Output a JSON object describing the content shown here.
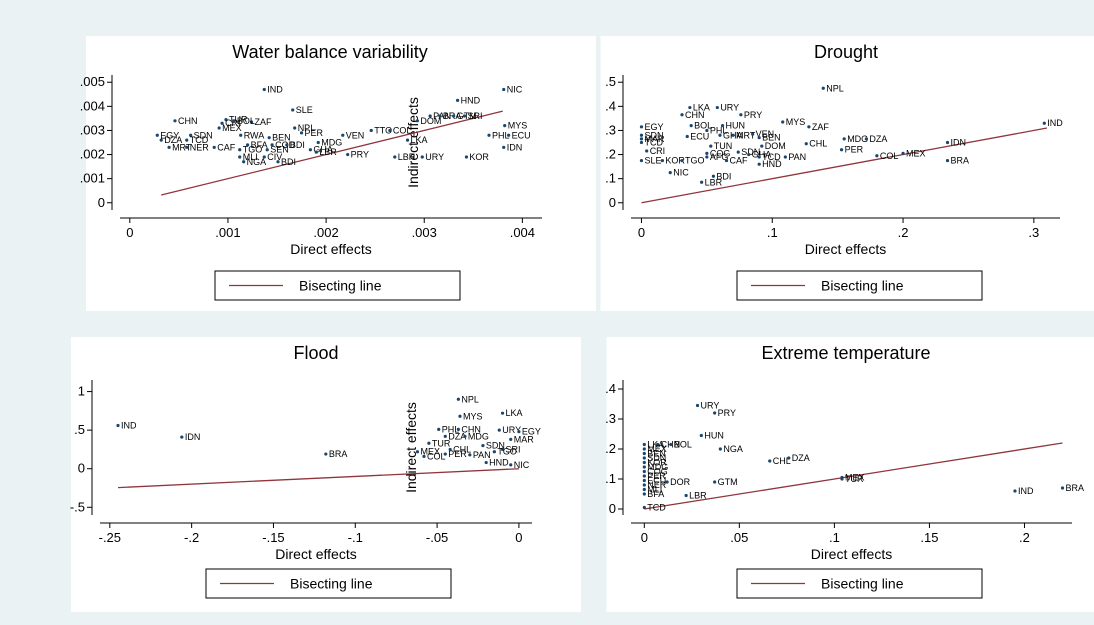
{
  "colors": {
    "background": "#eaf2f3",
    "panel": "#ffffff",
    "marker": "#1a476f",
    "line": "#90353b"
  },
  "chart_data": [
    {
      "type": "scatter",
      "title": "Water balance variability",
      "xlabel": "Direct effects",
      "ylabel": "Indirect effects",
      "xlim": [
        -0.0001,
        0.0042
      ],
      "ylim": [
        -0.0003,
        0.0053
      ],
      "xticks": [
        "0",
        ".001",
        ".002",
        ".003",
        ".004"
      ],
      "xtick_values": [
        0,
        0.001,
        0.002,
        0.003,
        0.004
      ],
      "yticks": [
        "0",
        ".001",
        ".002",
        ".003",
        ".004",
        ".005"
      ],
      "ytick_values": [
        0,
        0.001,
        0.002,
        0.003,
        0.004,
        0.005
      ],
      "legend": [
        "Bisecting line"
      ],
      "line": {
        "x": [
          0.00032,
          0.0038
        ],
        "y": [
          0.00032,
          0.0038
        ]
      },
      "points": [
        {
          "x": 0.00137,
          "y": 0.0047,
          "label": "IND"
        },
        {
          "x": 0.00381,
          "y": 0.0047,
          "label": "NIC"
        },
        {
          "x": 0.00166,
          "y": 0.00385,
          "label": "SLE"
        },
        {
          "x": 0.00334,
          "y": 0.00425,
          "label": "HND"
        },
        {
          "x": 0.00046,
          "y": 0.0034,
          "label": "CHN"
        },
        {
          "x": 0.00098,
          "y": 0.00345,
          "label": "TUR"
        },
        {
          "x": 0.00094,
          "y": 0.0033,
          "label": "CRI"
        },
        {
          "x": 0.00124,
          "y": 0.00335,
          "label": "ZAF"
        },
        {
          "x": 0.00091,
          "y": 0.0031,
          "label": "MEX"
        },
        {
          "x": 0.00106,
          "y": 0.0034,
          "label": "BOL"
        },
        {
          "x": 0.00028,
          "y": 0.0028,
          "label": "EGY"
        },
        {
          "x": 0.00062,
          "y": 0.0028,
          "label": "SDN"
        },
        {
          "x": 0.00032,
          "y": 0.0026,
          "label": "DZA"
        },
        {
          "x": 0.00058,
          "y": 0.0026,
          "label": "TCD"
        },
        {
          "x": 0.0004,
          "y": 0.0023,
          "label": "MRT"
        },
        {
          "x": 0.00058,
          "y": 0.0023,
          "label": "NER"
        },
        {
          "x": 0.00086,
          "y": 0.0023,
          "label": "CAF"
        },
        {
          "x": 0.00113,
          "y": 0.0028,
          "label": "RWA"
        },
        {
          "x": 0.00142,
          "y": 0.0027,
          "label": "BEN"
        },
        {
          "x": 0.00168,
          "y": 0.0031,
          "label": "NPL"
        },
        {
          "x": 0.00175,
          "y": 0.0029,
          "label": "PER"
        },
        {
          "x": 0.0012,
          "y": 0.0024,
          "label": "BFA"
        },
        {
          "x": 0.00145,
          "y": 0.0024,
          "label": "COD"
        },
        {
          "x": 0.0016,
          "y": 0.0024,
          "label": "BDI"
        },
        {
          "x": 0.00112,
          "y": 0.0022,
          "label": "TGO"
        },
        {
          "x": 0.0014,
          "y": 0.0022,
          "label": "SEN"
        },
        {
          "x": 0.00112,
          "y": 0.0019,
          "label": "MLI"
        },
        {
          "x": 0.00116,
          "y": 0.0017,
          "label": "NGA"
        },
        {
          "x": 0.00137,
          "y": 0.0019,
          "label": "CIV"
        },
        {
          "x": 0.00151,
          "y": 0.0017,
          "label": "BDI"
        },
        {
          "x": 0.00184,
          "y": 0.0022,
          "label": "GHA"
        },
        {
          "x": 0.00192,
          "y": 0.0025,
          "label": "MDG"
        },
        {
          "x": 0.0019,
          "y": 0.0021,
          "label": "LBR"
        },
        {
          "x": 0.00217,
          "y": 0.0028,
          "label": "VEN"
        },
        {
          "x": 0.00246,
          "y": 0.003,
          "label": "TTO"
        },
        {
          "x": 0.00265,
          "y": 0.003,
          "label": "COL"
        },
        {
          "x": 0.00283,
          "y": 0.0026,
          "label": "LKA"
        },
        {
          "x": 0.00222,
          "y": 0.002,
          "label": "PRY"
        },
        {
          "x": 0.0027,
          "y": 0.0019,
          "label": "LBR"
        },
        {
          "x": 0.00298,
          "y": 0.0019,
          "label": "URY"
        },
        {
          "x": 0.00293,
          "y": 0.0034,
          "label": "DOM"
        },
        {
          "x": 0.00306,
          "y": 0.0036,
          "label": "PAN"
        },
        {
          "x": 0.00316,
          "y": 0.0036,
          "label": "BRA"
        },
        {
          "x": 0.0033,
          "y": 0.0036,
          "label": "GTM"
        },
        {
          "x": 0.00341,
          "y": 0.0036,
          "label": "SRI"
        },
        {
          "x": 0.00382,
          "y": 0.0032,
          "label": "MYS"
        },
        {
          "x": 0.00366,
          "y": 0.0028,
          "label": "PHL"
        },
        {
          "x": 0.00386,
          "y": 0.0028,
          "label": "ECU"
        },
        {
          "x": 0.00381,
          "y": 0.0023,
          "label": "IDN"
        },
        {
          "x": 0.00343,
          "y": 0.0019,
          "label": "KOR"
        }
      ]
    },
    {
      "type": "scatter",
      "title": "Drought",
      "xlabel": "Direct effects",
      "ylabel": "Indirect effects",
      "xlim": [
        -0.008,
        0.32
      ],
      "ylim": [
        -0.03,
        0.53
      ],
      "xticks": [
        "0",
        ".1",
        ".2",
        ".3"
      ],
      "xtick_values": [
        0,
        0.1,
        0.2,
        0.3
      ],
      "yticks": [
        "0",
        ".1",
        ".2",
        ".3",
        ".4",
        ".5"
      ],
      "ytick_values": [
        0,
        0.1,
        0.2,
        0.3,
        0.4,
        0.5
      ],
      "legend": [
        "Bisecting line"
      ],
      "line": {
        "x": [
          0.0,
          0.31
        ],
        "y": [
          0.0,
          0.31
        ]
      },
      "points": [
        {
          "x": 0.139,
          "y": 0.475,
          "label": "NPL"
        },
        {
          "x": 0.308,
          "y": 0.33,
          "label": "IND"
        },
        {
          "x": 0.037,
          "y": 0.395,
          "label": "LKA"
        },
        {
          "x": 0.058,
          "y": 0.395,
          "label": "URY"
        },
        {
          "x": 0.031,
          "y": 0.365,
          "label": "CHN"
        },
        {
          "x": 0.076,
          "y": 0.365,
          "label": "PRY"
        },
        {
          "x": 0.0,
          "y": 0.315,
          "label": "EGY"
        },
        {
          "x": 0.038,
          "y": 0.32,
          "label": "BOL"
        },
        {
          "x": 0.062,
          "y": 0.32,
          "label": "HUN"
        },
        {
          "x": 0.108,
          "y": 0.335,
          "label": "MYS"
        },
        {
          "x": 0.128,
          "y": 0.315,
          "label": "ZAF"
        },
        {
          "x": 0.0,
          "y": 0.28,
          "label": "SDN"
        },
        {
          "x": 0.05,
          "y": 0.3,
          "label": "PHL"
        },
        {
          "x": 0.06,
          "y": 0.28,
          "label": "GHA"
        },
        {
          "x": 0.035,
          "y": 0.275,
          "label": "ECU"
        },
        {
          "x": 0.0,
          "y": 0.265,
          "label": "MAR"
        },
        {
          "x": 0.0,
          "y": 0.25,
          "label": "TCD"
        },
        {
          "x": 0.07,
          "y": 0.28,
          "label": "MRT"
        },
        {
          "x": 0.085,
          "y": 0.285,
          "label": "VEN"
        },
        {
          "x": 0.09,
          "y": 0.27,
          "label": "BEN"
        },
        {
          "x": 0.155,
          "y": 0.265,
          "label": "MDG"
        },
        {
          "x": 0.172,
          "y": 0.265,
          "label": "DZA"
        },
        {
          "x": 0.126,
          "y": 0.245,
          "label": "CHL"
        },
        {
          "x": 0.234,
          "y": 0.25,
          "label": "IDN"
        },
        {
          "x": 0.004,
          "y": 0.215,
          "label": "CRI"
        },
        {
          "x": 0.053,
          "y": 0.235,
          "label": "TUN"
        },
        {
          "x": 0.092,
          "y": 0.235,
          "label": "DOM"
        },
        {
          "x": 0.153,
          "y": 0.22,
          "label": "PER"
        },
        {
          "x": 0.0,
          "y": 0.175,
          "label": "SLE"
        },
        {
          "x": 0.016,
          "y": 0.175,
          "label": "KOR"
        },
        {
          "x": 0.031,
          "y": 0.175,
          "label": "TGO"
        },
        {
          "x": 0.05,
          "y": 0.205,
          "label": "COG"
        },
        {
          "x": 0.05,
          "y": 0.19,
          "label": "AFG"
        },
        {
          "x": 0.074,
          "y": 0.21,
          "label": "SDN"
        },
        {
          "x": 0.082,
          "y": 0.2,
          "label": "GHA"
        },
        {
          "x": 0.065,
          "y": 0.175,
          "label": "CAF"
        },
        {
          "x": 0.09,
          "y": 0.19,
          "label": "TCD"
        },
        {
          "x": 0.09,
          "y": 0.16,
          "label": "HND"
        },
        {
          "x": 0.11,
          "y": 0.19,
          "label": "PAN"
        },
        {
          "x": 0.2,
          "y": 0.205,
          "label": "MEX"
        },
        {
          "x": 0.18,
          "y": 0.195,
          "label": "COL"
        },
        {
          "x": 0.234,
          "y": 0.175,
          "label": "BRA"
        },
        {
          "x": 0.022,
          "y": 0.125,
          "label": "NIC"
        },
        {
          "x": 0.055,
          "y": 0.11,
          "label": "BDI"
        },
        {
          "x": 0.046,
          "y": 0.085,
          "label": "LBR"
        }
      ]
    },
    {
      "type": "scatter",
      "title": "Flood",
      "xlabel": "Direct effects",
      "ylabel": "Indirect effects",
      "xlim": [
        -0.256,
        0.008
      ],
      "ylim": [
        -0.6,
        1.15
      ],
      "xticks": [
        "-.25",
        "-.2",
        "-.15",
        "-.1",
        "-.05",
        "0"
      ],
      "xtick_values": [
        -0.25,
        -0.2,
        -0.15,
        -0.1,
        -0.05,
        0
      ],
      "yticks": [
        "-.5",
        "0",
        ".5",
        "1"
      ],
      "ytick_values": [
        -0.5,
        0,
        0.5,
        1
      ],
      "legend": [
        "Bisecting line"
      ],
      "line": {
        "x": [
          -0.245,
          0.0
        ],
        "y": [
          -0.245,
          0.0
        ]
      },
      "points": [
        {
          "x": -0.245,
          "y": 0.56,
          "label": "IND"
        },
        {
          "x": -0.206,
          "y": 0.41,
          "label": "IDN"
        },
        {
          "x": -0.118,
          "y": 0.19,
          "label": "BRA"
        },
        {
          "x": -0.037,
          "y": 0.9,
          "label": "NPL"
        },
        {
          "x": -0.036,
          "y": 0.68,
          "label": "MYS"
        },
        {
          "x": -0.01,
          "y": 0.72,
          "label": "LKA"
        },
        {
          "x": -0.049,
          "y": 0.51,
          "label": "PHL"
        },
        {
          "x": -0.037,
          "y": 0.51,
          "label": "CHN"
        },
        {
          "x": -0.045,
          "y": 0.42,
          "label": "DZA"
        },
        {
          "x": -0.033,
          "y": 0.42,
          "label": "MDG"
        },
        {
          "x": -0.055,
          "y": 0.33,
          "label": "TUR"
        },
        {
          "x": -0.062,
          "y": 0.22,
          "label": "MEX"
        },
        {
          "x": -0.058,
          "y": 0.16,
          "label": "COL"
        },
        {
          "x": -0.045,
          "y": 0.19,
          "label": "PER"
        },
        {
          "x": -0.042,
          "y": 0.25,
          "label": "CHL"
        },
        {
          "x": -0.03,
          "y": 0.18,
          "label": "PAN"
        },
        {
          "x": -0.022,
          "y": 0.3,
          "label": "SDN"
        },
        {
          "x": -0.012,
          "y": 0.5,
          "label": "URY"
        },
        {
          "x": 0.0,
          "y": 0.48,
          "label": "EGY"
        },
        {
          "x": -0.005,
          "y": 0.38,
          "label": "MAR"
        },
        {
          "x": -0.02,
          "y": 0.08,
          "label": "HND"
        },
        {
          "x": -0.005,
          "y": 0.05,
          "label": "NIC"
        },
        {
          "x": -0.01,
          "y": 0.25,
          "label": "SRI"
        },
        {
          "x": -0.015,
          "y": 0.22,
          "label": "TGO"
        }
      ]
    },
    {
      "type": "scatter",
      "title": "Extreme temperature",
      "xlabel": "Direct effects",
      "ylabel": "Indirect effects",
      "xlim": [
        -0.007,
        0.225
      ],
      "ylim": [
        -0.02,
        0.43
      ],
      "xticks": [
        "0",
        ".05",
        ".1",
        ".15",
        ".2"
      ],
      "xtick_values": [
        0,
        0.05,
        0.1,
        0.15,
        0.2
      ],
      "yticks": [
        "0",
        ".1",
        ".2",
        ".3",
        ".4"
      ],
      "ytick_values": [
        0,
        0.1,
        0.2,
        0.3,
        0.4
      ],
      "legend": [
        "Bisecting line"
      ],
      "line": {
        "x": [
          0.0,
          0.22
        ],
        "y": [
          0.0,
          0.22
        ]
      },
      "points": [
        {
          "x": 0.028,
          "y": 0.345,
          "label": "URY"
        },
        {
          "x": 0.037,
          "y": 0.32,
          "label": "PRY"
        },
        {
          "x": 0.03,
          "y": 0.245,
          "label": "HUN"
        },
        {
          "x": 0.04,
          "y": 0.2,
          "label": "NGA"
        },
        {
          "x": 0.076,
          "y": 0.17,
          "label": "DZA"
        },
        {
          "x": 0.066,
          "y": 0.16,
          "label": "CHL"
        },
        {
          "x": 0.104,
          "y": 0.105,
          "label": "MEX"
        },
        {
          "x": 0.104,
          "y": 0.1,
          "label": "TUR"
        },
        {
          "x": 0.037,
          "y": 0.09,
          "label": "GTM"
        },
        {
          "x": 0.022,
          "y": 0.045,
          "label": "LBR"
        },
        {
          "x": 0.195,
          "y": 0.06,
          "label": "IND"
        },
        {
          "x": 0.22,
          "y": 0.07,
          "label": "BRA"
        },
        {
          "x": 0.0,
          "y": 0.005,
          "label": "TCD"
        },
        {
          "x": 0.0,
          "y": 0.215,
          "label": "LKA"
        },
        {
          "x": 0.007,
          "y": 0.215,
          "label": "CHN"
        },
        {
          "x": 0.014,
          "y": 0.215,
          "label": "BOL"
        },
        {
          "x": 0.0,
          "y": 0.2,
          "label": "MEX"
        },
        {
          "x": 0.0,
          "y": 0.185,
          "label": "BEN"
        },
        {
          "x": 0.0,
          "y": 0.17,
          "label": "SDN"
        },
        {
          "x": 0.0,
          "y": 0.155,
          "label": "KOR"
        },
        {
          "x": 0.0,
          "y": 0.14,
          "label": "MDG"
        },
        {
          "x": 0.0,
          "y": 0.125,
          "label": "COG"
        },
        {
          "x": 0.0,
          "y": 0.11,
          "label": "PER"
        },
        {
          "x": 0.0,
          "y": 0.095,
          "label": "ECU"
        },
        {
          "x": 0.012,
          "y": 0.09,
          "label": "DOR"
        },
        {
          "x": 0.0,
          "y": 0.08,
          "label": "NER"
        },
        {
          "x": 0.0,
          "y": 0.065,
          "label": "MLI"
        },
        {
          "x": 0.0,
          "y": 0.05,
          "label": "BFA"
        }
      ]
    }
  ]
}
